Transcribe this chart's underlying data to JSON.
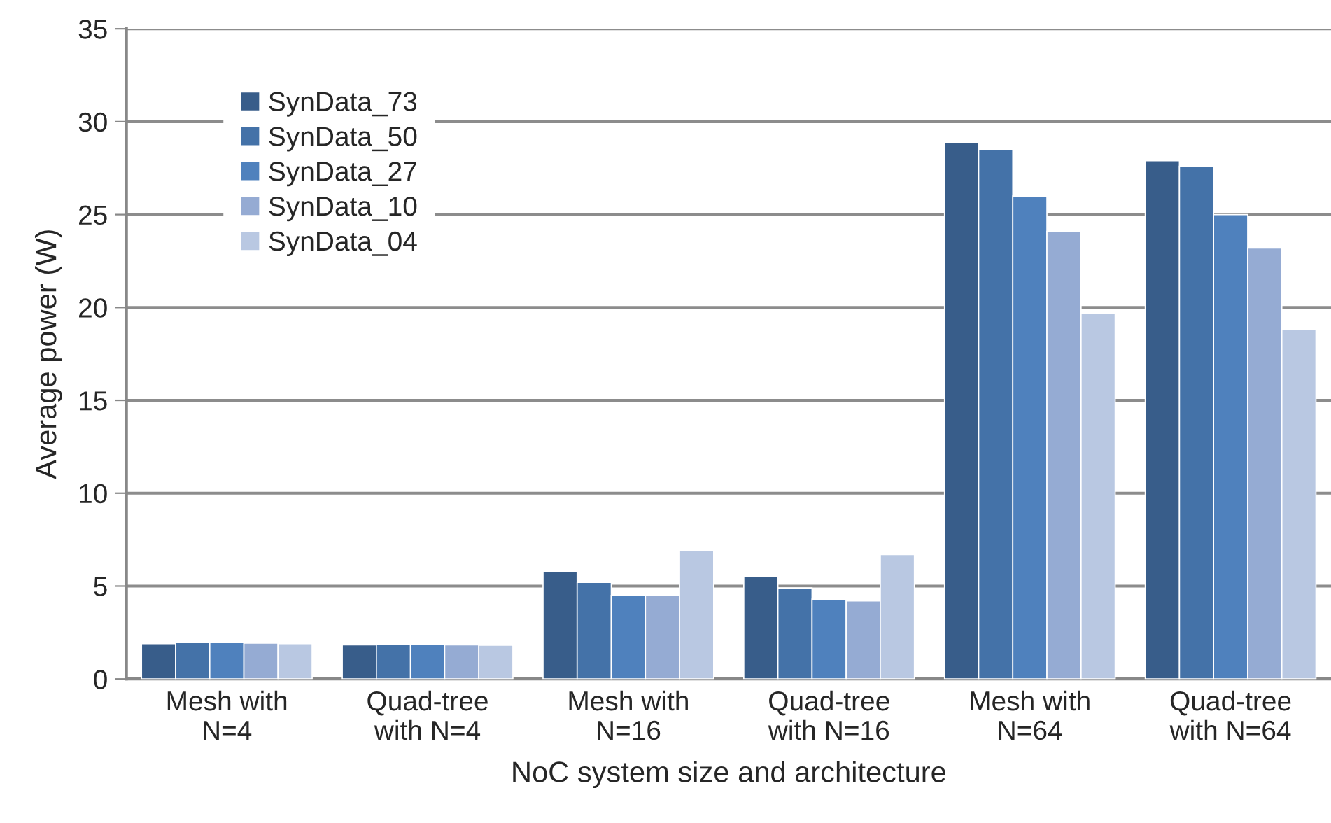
{
  "chart_data": {
    "type": "bar",
    "xlabel": "NoC system size and architecture",
    "ylabel": "Average power (W)",
    "categories": [
      "Mesh with\nN=4",
      "Quad-tree\nwith N=4",
      "Mesh with\nN=16",
      "Quad-tree\nwith N=16",
      "Mesh with\nN=64",
      "Quad-tree\nwith N=64"
    ],
    "series": [
      {
        "name": "SynData_73",
        "color": "#385d8a",
        "values": [
          1.9,
          1.84,
          5.8,
          5.5,
          28.9,
          27.9
        ]
      },
      {
        "name": "SynData_50",
        "color": "#4472a8",
        "values": [
          1.96,
          1.87,
          5.2,
          4.9,
          28.5,
          27.6
        ]
      },
      {
        "name": "SynData_27",
        "color": "#4f81bd",
        "values": [
          1.96,
          1.87,
          4.5,
          4.3,
          26.0,
          25.0
        ]
      },
      {
        "name": "SynData_10",
        "color": "#95abd3",
        "values": [
          1.93,
          1.84,
          4.5,
          4.2,
          24.1,
          23.2
        ]
      },
      {
        "name": "SynData_04",
        "color": "#b9c8e2",
        "values": [
          1.9,
          1.82,
          6.9,
          6.7,
          19.7,
          18.8
        ]
      }
    ],
    "ylim": [
      0,
      35
    ],
    "yticks": [
      0,
      5,
      10,
      15,
      20,
      25,
      30,
      35
    ],
    "grid": "y",
    "legend": "top left"
  }
}
